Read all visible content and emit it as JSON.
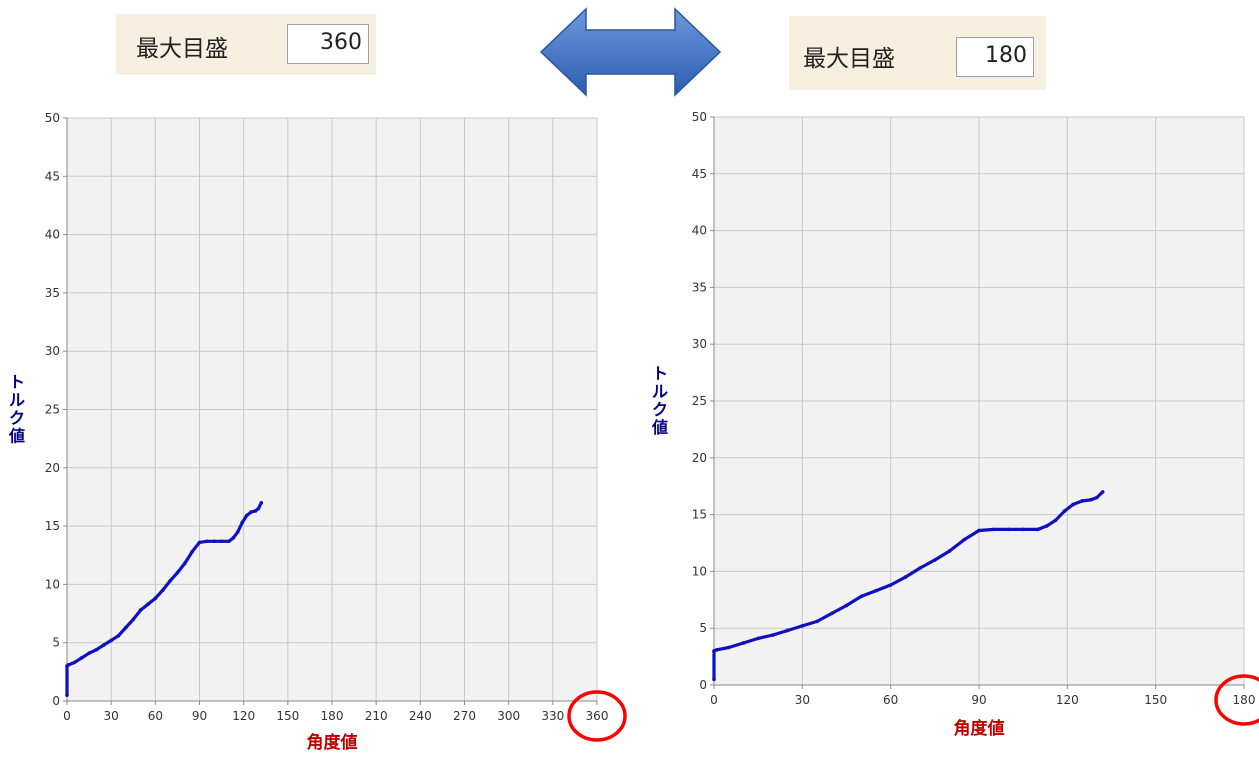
{
  "controls": {
    "left": {
      "label": "最大目盛",
      "value": "360"
    },
    "right": {
      "label": "最大目盛",
      "value": "180"
    }
  },
  "colors": {
    "series": "#1010c0",
    "axis_title_x": "#c00000",
    "axis_title_y": "#000080",
    "grid": "#c8c8c8",
    "plot_bg": "#f2f2f2",
    "highlight_circle": "#ff0000",
    "arrow": "#3b6fc4",
    "control_bg": "#f7efe0"
  },
  "chart_data": [
    {
      "type": "line",
      "xlabel": "角度値",
      "ylabel": "トルク値",
      "xlim": [
        0,
        360
      ],
      "ylim": [
        0,
        50
      ],
      "xticks": [
        0,
        30,
        60,
        90,
        120,
        150,
        180,
        210,
        240,
        270,
        300,
        330,
        360
      ],
      "yticks": [
        0,
        5,
        10,
        15,
        20,
        25,
        30,
        35,
        40,
        45,
        50
      ],
      "grid": true,
      "highlighted_tick": "360",
      "series": [
        {
          "x": [
            0,
            0,
            1,
            5,
            10,
            15,
            20,
            25,
            30,
            35,
            40,
            45,
            50,
            55,
            60,
            65,
            70,
            75,
            80,
            85,
            90,
            95,
            100,
            105,
            110,
            113,
            116,
            119,
            122,
            125,
            128,
            130,
            132
          ],
          "y": [
            0.5,
            3.0,
            3.1,
            3.3,
            3.7,
            4.1,
            4.4,
            4.8,
            5.2,
            5.6,
            6.3,
            7.0,
            7.8,
            8.3,
            8.8,
            9.5,
            10.3,
            11.0,
            11.8,
            12.8,
            13.6,
            13.7,
            13.7,
            13.7,
            13.7,
            14.0,
            14.5,
            15.3,
            15.9,
            16.2,
            16.3,
            16.5,
            17.0
          ]
        }
      ]
    },
    {
      "type": "line",
      "xlabel": "角度値",
      "ylabel": "トルク値",
      "xlim": [
        0,
        180
      ],
      "ylim": [
        0,
        50
      ],
      "xticks": [
        0,
        30,
        60,
        90,
        120,
        150,
        180
      ],
      "yticks": [
        0,
        5,
        10,
        15,
        20,
        25,
        30,
        35,
        40,
        45,
        50
      ],
      "grid": true,
      "highlighted_tick": "180",
      "series": [
        {
          "x": [
            0,
            0,
            1,
            5,
            10,
            15,
            20,
            25,
            30,
            35,
            40,
            45,
            50,
            55,
            60,
            65,
            70,
            75,
            80,
            85,
            90,
            95,
            100,
            105,
            110,
            113,
            116,
            119,
            122,
            125,
            128,
            130,
            132
          ],
          "y": [
            0.5,
            3.0,
            3.1,
            3.3,
            3.7,
            4.1,
            4.4,
            4.8,
            5.2,
            5.6,
            6.3,
            7.0,
            7.8,
            8.3,
            8.8,
            9.5,
            10.3,
            11.0,
            11.8,
            12.8,
            13.6,
            13.7,
            13.7,
            13.7,
            13.7,
            14.0,
            14.5,
            15.3,
            15.9,
            16.2,
            16.3,
            16.5,
            17.0
          ]
        }
      ]
    }
  ]
}
